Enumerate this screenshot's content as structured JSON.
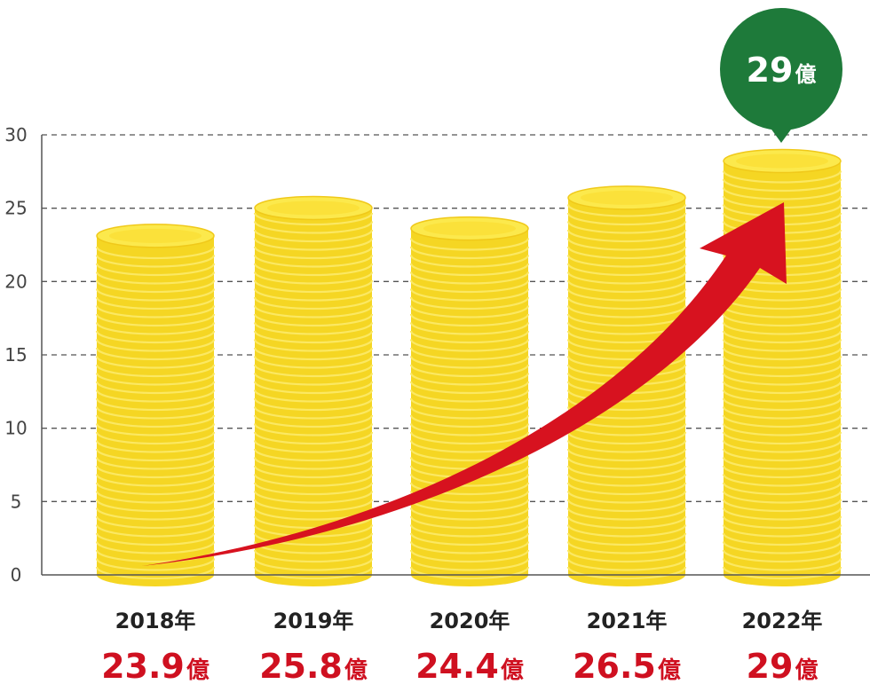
{
  "chart_data": {
    "type": "bar",
    "categories": [
      "2018年",
      "2019年",
      "2020年",
      "2021年",
      "2022年"
    ],
    "values": [
      23.9,
      25.8,
      24.4,
      26.5,
      29
    ],
    "value_labels": [
      {
        "number": "23.9",
        "unit": "億"
      },
      {
        "number": "25.8",
        "unit": "億"
      },
      {
        "number": "24.4",
        "unit": "億"
      },
      {
        "number": "26.5",
        "unit": "億"
      },
      {
        "number": "29",
        "unit": "億"
      }
    ],
    "ylim": [
      0,
      30
    ],
    "yticks": [
      "0",
      "5",
      "10",
      "15",
      "20",
      "25",
      "30"
    ],
    "grid": true,
    "annotation": {
      "number": "29",
      "unit": "億"
    },
    "colors": {
      "coin_body": "#f5d623",
      "coin_ridge": "#fbe862",
      "coin_top": "#fce94c",
      "coin_top_inner": "#fbe13a",
      "arrow": "#d7121f",
      "bubble": "#1e7a3a",
      "value_text": "#cf1020"
    }
  }
}
